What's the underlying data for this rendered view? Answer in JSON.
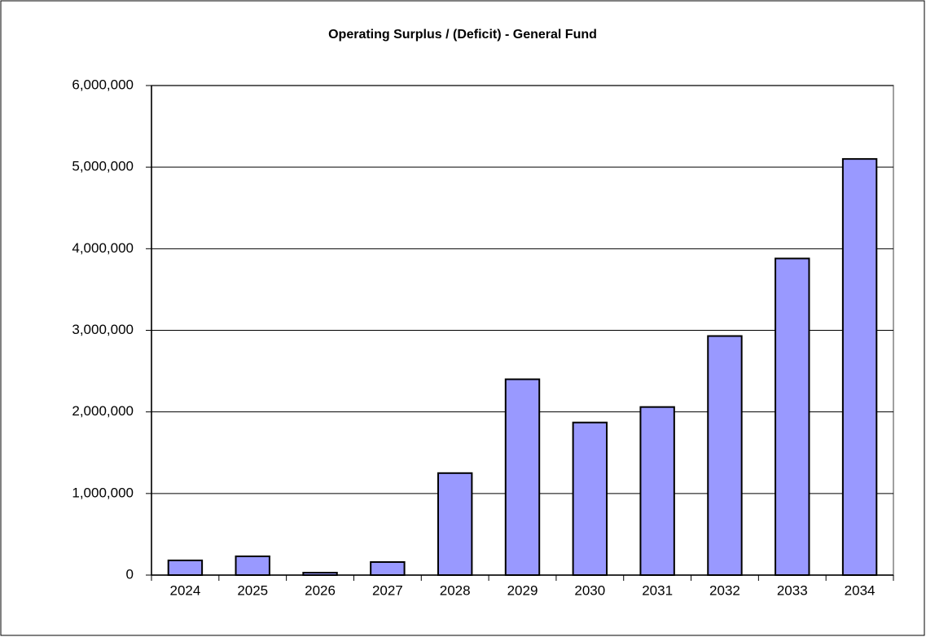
{
  "chart_data": {
    "type": "bar",
    "title": "Operating Surplus / (Deficit) - General Fund",
    "categories": [
      "2024",
      "2025",
      "2026",
      "2027",
      "2028",
      "2029",
      "2030",
      "2031",
      "2032",
      "2033",
      "2034"
    ],
    "values": [
      180000,
      230000,
      30000,
      160000,
      1250000,
      2400000,
      1870000,
      2060000,
      2930000,
      3880000,
      5100000
    ],
    "color": "#9999ff",
    "ylim": [
      0,
      6000000
    ],
    "yticks": [
      0,
      {
        "value": 1000000,
        "label": "1,000,000"
      },
      {
        "value": 2000000,
        "label": "2,000,000"
      },
      {
        "value": 3000000,
        "label": "3,000,000"
      },
      {
        "value": 4000000,
        "label": "4,000,000"
      },
      {
        "value": 5000000,
        "label": "5,000,000"
      },
      {
        "value": 6000000,
        "label": "6,000,000"
      }
    ],
    "grid": true
  }
}
